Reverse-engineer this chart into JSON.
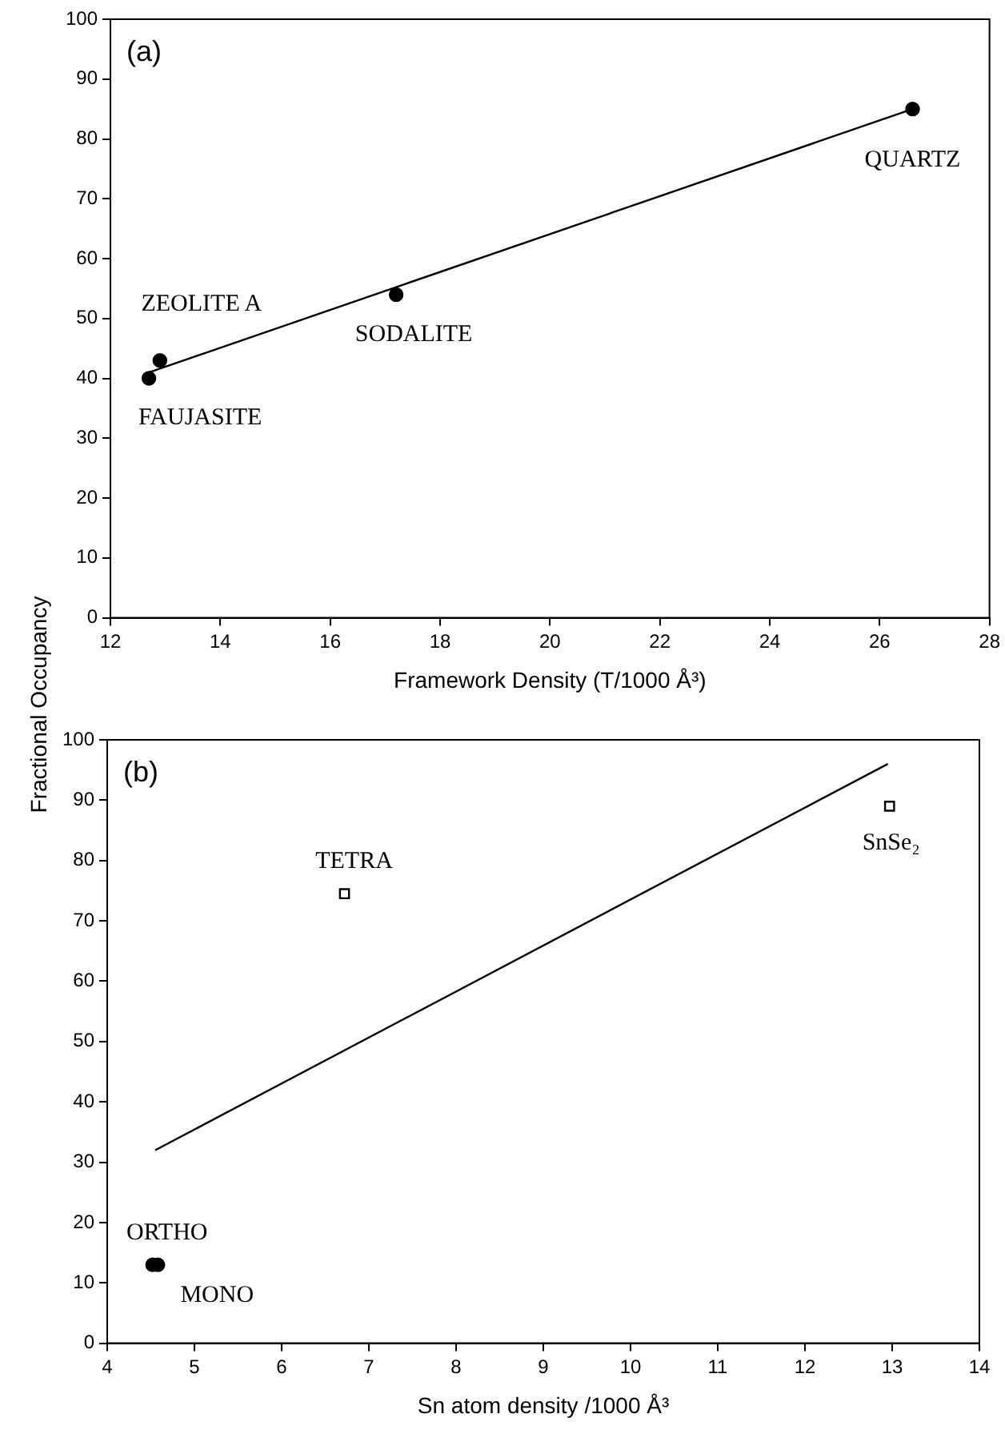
{
  "chart_data": [
    {
      "type": "scatter",
      "xlabel": "Framework Density (T/1000 Å³)",
      "ylabel": "Fractional Occupancy",
      "xlim": [
        12,
        28
      ],
      "xticks": [
        12,
        14,
        16,
        18,
        20,
        22,
        24,
        26,
        28
      ],
      "ylim": [
        0,
        100
      ],
      "yticks": [
        0,
        10,
        20,
        30,
        40,
        50,
        60,
        70,
        80,
        90,
        100
      ],
      "series": [
        {
          "marker": "circle",
          "color": "#000000",
          "x": [
            12.7,
            12.9,
            17.2,
            26.6
          ],
          "values": [
            40,
            43,
            54,
            85
          ]
        },
        {
          "type": "line",
          "marker": "none",
          "color": "#000000",
          "x": [
            12.7,
            26.6
          ],
          "values": [
            41,
            85
          ]
        }
      ],
      "annotations": [
        "(a)",
        {
          "text": "ZEOLITE A",
          "x": 12.9,
          "y": 43
        },
        {
          "text": "FAUJASITE",
          "x": 12.7,
          "y": 40
        },
        {
          "text": "SODALITE",
          "x": 17.2,
          "y": 54
        },
        {
          "text": "QUARTZ",
          "x": 26.6,
          "y": 85
        }
      ]
    },
    {
      "type": "scatter",
      "xlabel": "Sn atom density /1000 Å³",
      "xlim": [
        4,
        14
      ],
      "xticks": [
        4,
        5,
        6,
        7,
        8,
        9,
        10,
        11,
        12,
        13,
        14
      ],
      "ylim": [
        0,
        100
      ],
      "yticks": [
        0,
        10,
        20,
        30,
        40,
        50,
        60,
        70,
        80,
        90,
        100
      ],
      "series": [
        {
          "marker": "circle",
          "color": "#000000",
          "x": [
            4.52,
            4.58
          ],
          "values": [
            13,
            13
          ]
        },
        {
          "marker": "square",
          "color": "#000000",
          "x": [
            6.72,
            12.97
          ],
          "values": [
            74.5,
            89
          ]
        },
        {
          "type": "line",
          "marker": "none",
          "color": "#000000",
          "x": [
            4.55,
            12.95
          ],
          "values": [
            32,
            96
          ]
        }
      ],
      "annotations": [
        "(b)",
        {
          "text": "TETRA",
          "x": 6.72,
          "y": 74.5
        },
        {
          "text": "SnSe₂",
          "x": 12.97,
          "y": 89
        },
        {
          "text": "ORTHO",
          "x": 4.52,
          "y": 13
        },
        {
          "text": "MONO",
          "x": 4.58,
          "y": 13
        }
      ]
    }
  ]
}
